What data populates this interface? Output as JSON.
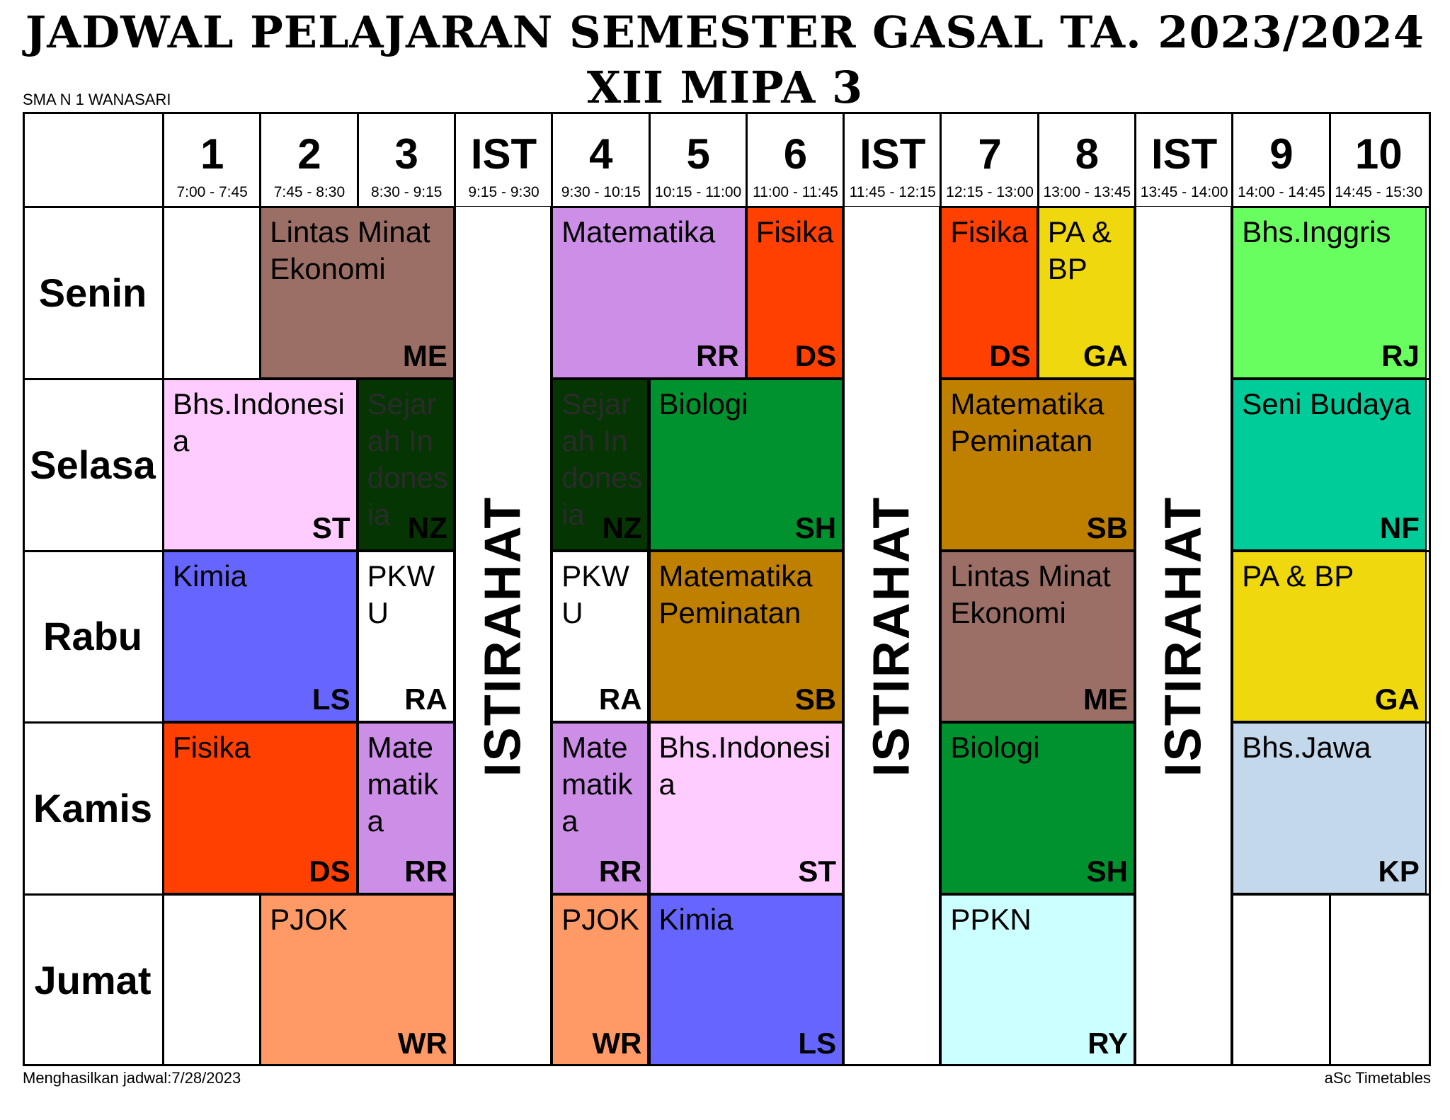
{
  "title_line1": "JADWAL PELAJARAN SEMESTER GASAL TA. 2023/2024",
  "title_line2": "XII MIPA 3",
  "school": "SMA N 1 WANASARI",
  "footer_left": "Menghasilkan jadwal:7/28/2023",
  "footer_right": "aSc Timetables",
  "periods": [
    {
      "label": "1",
      "time": "7:00 - 7:45"
    },
    {
      "label": "2",
      "time": "7:45 - 8:30"
    },
    {
      "label": "3",
      "time": "8:30 - 9:15"
    },
    {
      "label": "IST",
      "time": "9:15 - 9:30"
    },
    {
      "label": "4",
      "time": "9:30 - 10:15"
    },
    {
      "label": "5",
      "time": "10:15 - 11:00"
    },
    {
      "label": "6",
      "time": "11:00 - 11:45"
    },
    {
      "label": "IST",
      "time": "11:45 - 12:15"
    },
    {
      "label": "7",
      "time": "12:15 - 13:00"
    },
    {
      "label": "8",
      "time": "13:00 - 13:45"
    },
    {
      "label": "IST",
      "time": "13:45 - 14:00"
    },
    {
      "label": "9",
      "time": "14:00 - 14:45"
    },
    {
      "label": "10",
      "time": "14:45 - 15:30"
    }
  ],
  "days": [
    "Senin",
    "Selasa",
    "Rabu",
    "Kamis",
    "Jumat"
  ],
  "break_label": "ISTIRAHAT",
  "colors": {
    "ekonomi": "#9b6f66",
    "matematika": "#cc8ee6",
    "fisika": "#ff4000",
    "pabp": "#f0d80f",
    "inggris": "#69fe5f",
    "indonesia": "#ffccff",
    "sejarah": "#053503",
    "biologi": "#00922e",
    "peminatan": "#bf8000",
    "seni": "#00cc99",
    "kimia": "#6666ff",
    "pkwu": "#ffffff",
    "jawa": "#c4d8ec",
    "pjok": "#ff9966",
    "ppkn": "#ccffff"
  },
  "lessons": [
    {
      "day": 0,
      "start": 1,
      "span": 2,
      "subject": "Lintas Minat Ekonomi",
      "teacher": "ME",
      "color": "#9b6f66"
    },
    {
      "day": 0,
      "start": 4,
      "span": 2,
      "subject": "Matematika",
      "teacher": "RR",
      "color": "#cc8ee6"
    },
    {
      "day": 0,
      "start": 6,
      "span": 1,
      "subject": "Fisika",
      "teacher": "DS",
      "color": "#ff4000"
    },
    {
      "day": 0,
      "start": 8,
      "span": 1,
      "subject": "Fisika",
      "teacher": "DS",
      "color": "#ff4000"
    },
    {
      "day": 0,
      "start": 9,
      "span": 1,
      "subject": "PA & BP",
      "teacher": "GA",
      "color": "#f0d80f"
    },
    {
      "day": 0,
      "start": 11,
      "span": 2,
      "subject": "Bhs.Inggris",
      "teacher": "RJ",
      "color": "#69fe5f"
    },
    {
      "day": 1,
      "start": 0,
      "span": 2,
      "subject": "Bhs.Indonesia",
      "teacher": "ST",
      "color": "#ffccff"
    },
    {
      "day": 1,
      "start": 2,
      "span": 1,
      "subject": "Sejarah Indonesia",
      "teacher": "NZ",
      "color": "#053503"
    },
    {
      "day": 1,
      "start": 4,
      "span": 1,
      "subject": "Sejarah Indonesia",
      "teacher": "NZ",
      "color": "#053503"
    },
    {
      "day": 1,
      "start": 5,
      "span": 2,
      "subject": "Biologi",
      "teacher": "SH",
      "color": "#00922e"
    },
    {
      "day": 1,
      "start": 8,
      "span": 2,
      "subject": "Matematika Peminatan",
      "teacher": "SB",
      "color": "#bf8000"
    },
    {
      "day": 1,
      "start": 11,
      "span": 2,
      "subject": "Seni Budaya",
      "teacher": "NF",
      "color": "#00cc99"
    },
    {
      "day": 2,
      "start": 0,
      "span": 2,
      "subject": "Kimia",
      "teacher": "LS",
      "color": "#6666ff"
    },
    {
      "day": 2,
      "start": 2,
      "span": 1,
      "subject": "PKWU",
      "teacher": "RA",
      "color": "#ffffff"
    },
    {
      "day": 2,
      "start": 4,
      "span": 1,
      "subject": "PKWU",
      "teacher": "RA",
      "color": "#ffffff"
    },
    {
      "day": 2,
      "start": 5,
      "span": 2,
      "subject": "Matematika Peminatan",
      "teacher": "SB",
      "color": "#bf8000"
    },
    {
      "day": 2,
      "start": 8,
      "span": 2,
      "subject": "Lintas Minat Ekonomi",
      "teacher": "ME",
      "color": "#9b6f66"
    },
    {
      "day": 2,
      "start": 11,
      "span": 2,
      "subject": "PA & BP",
      "teacher": "GA",
      "color": "#f0d80f"
    },
    {
      "day": 3,
      "start": 0,
      "span": 2,
      "subject": "Fisika",
      "teacher": "DS",
      "color": "#ff4000"
    },
    {
      "day": 3,
      "start": 2,
      "span": 1,
      "subject": "Matematika",
      "teacher": "RR",
      "color": "#cc8ee6"
    },
    {
      "day": 3,
      "start": 4,
      "span": 1,
      "subject": "Matematika",
      "teacher": "RR",
      "color": "#cc8ee6"
    },
    {
      "day": 3,
      "start": 5,
      "span": 2,
      "subject": "Bhs.Indonesia",
      "teacher": "ST",
      "color": "#ffccff"
    },
    {
      "day": 3,
      "start": 8,
      "span": 2,
      "subject": "Biologi",
      "teacher": "SH",
      "color": "#00922e"
    },
    {
      "day": 3,
      "start": 11,
      "span": 2,
      "subject": "Bhs.Jawa",
      "teacher": "KP",
      "color": "#c4d8ec"
    },
    {
      "day": 4,
      "start": 1,
      "span": 2,
      "subject": "PJOK",
      "teacher": "WR",
      "color": "#ff9966"
    },
    {
      "day": 4,
      "start": 4,
      "span": 1,
      "subject": "PJOK",
      "teacher": "WR",
      "color": "#ff9966"
    },
    {
      "day": 4,
      "start": 5,
      "span": 2,
      "subject": "Kimia",
      "teacher": "LS",
      "color": "#6666ff"
    },
    {
      "day": 4,
      "start": 8,
      "span": 2,
      "subject": "PPKN",
      "teacher": "RY",
      "color": "#ccffff"
    }
  ]
}
